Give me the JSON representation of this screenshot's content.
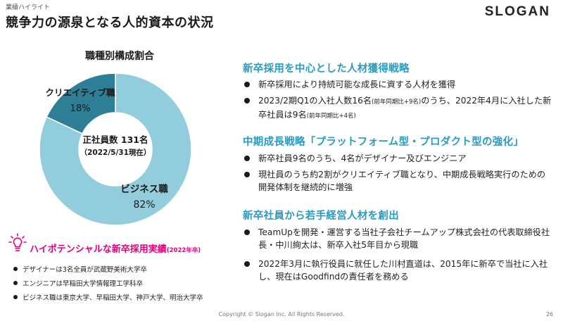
{
  "header": {
    "kicker": "業績ハイライト",
    "title": "競争力の源泉となる人的資本の状況",
    "logo": "SLOGAN"
  },
  "chart_data": {
    "type": "pie",
    "title": "職種別構成割合",
    "center_line1": "正社員数 131名",
    "center_line2": "（2022/5/31現在）",
    "segments": [
      {
        "name": "ビジネス職",
        "value": 82,
        "label": "82%",
        "color": "#92cddd"
      },
      {
        "name": "クリエイティブ職",
        "value": 18,
        "label": "18%",
        "color": "#2e7f95"
      }
    ]
  },
  "sections": [
    {
      "heading": "新卒採用を中心とした人材獲得戦略",
      "bullets": [
        {
          "text": "新卒採用により持続可能な成長に資する人材を獲得"
        },
        {
          "text1": "2023/2期Q1の入社人数16名",
          "note1": "(前年同期比+9名)",
          "text2": "のうち、2022年4月に入社した新卒社員は9名",
          "note2": "(前年同期比+4名)"
        }
      ]
    },
    {
      "heading": "中期成長戦略「プラットフォーム型・プロダクト型の強化」",
      "bullets": [
        {
          "text": "新卒社員9名のうち、4名がデザイナー及びエンジニア"
        },
        {
          "text": "現社員のうち約2割がクリエイティブ職となり、中期成長戦略実行のための開発体制を継続的に増強"
        }
      ]
    },
    {
      "heading": "新卒社員から若手経営人材を創出",
      "bullets": [
        {
          "text": "TeamUpを開発・運営する当社子会社チームアップ株式会社の代表取締役社長・中川絢太は、新卒入社5年目から現職"
        },
        {
          "text": "2022年3月に執行役員に就任した川村直道は、2015年に新卒で当社に入社し、現在はGoodfindの責任者を務める"
        }
      ]
    }
  ],
  "high_potential": {
    "title": "ハイポテンシャルな新卒採用実績",
    "title_note": "(2022年卒)",
    "items": [
      "デザイナーは3名全員が武蔵野美術大学卒",
      "エンジニアは早稲田大学情報理工学科卒",
      "ビジネス職は東京大学、早稲田大学、神戸大学、明治大学卒"
    ]
  },
  "footer": {
    "copyright": "Copyright © Slogan Inc. All Rights Reserved.",
    "page": "26"
  }
}
